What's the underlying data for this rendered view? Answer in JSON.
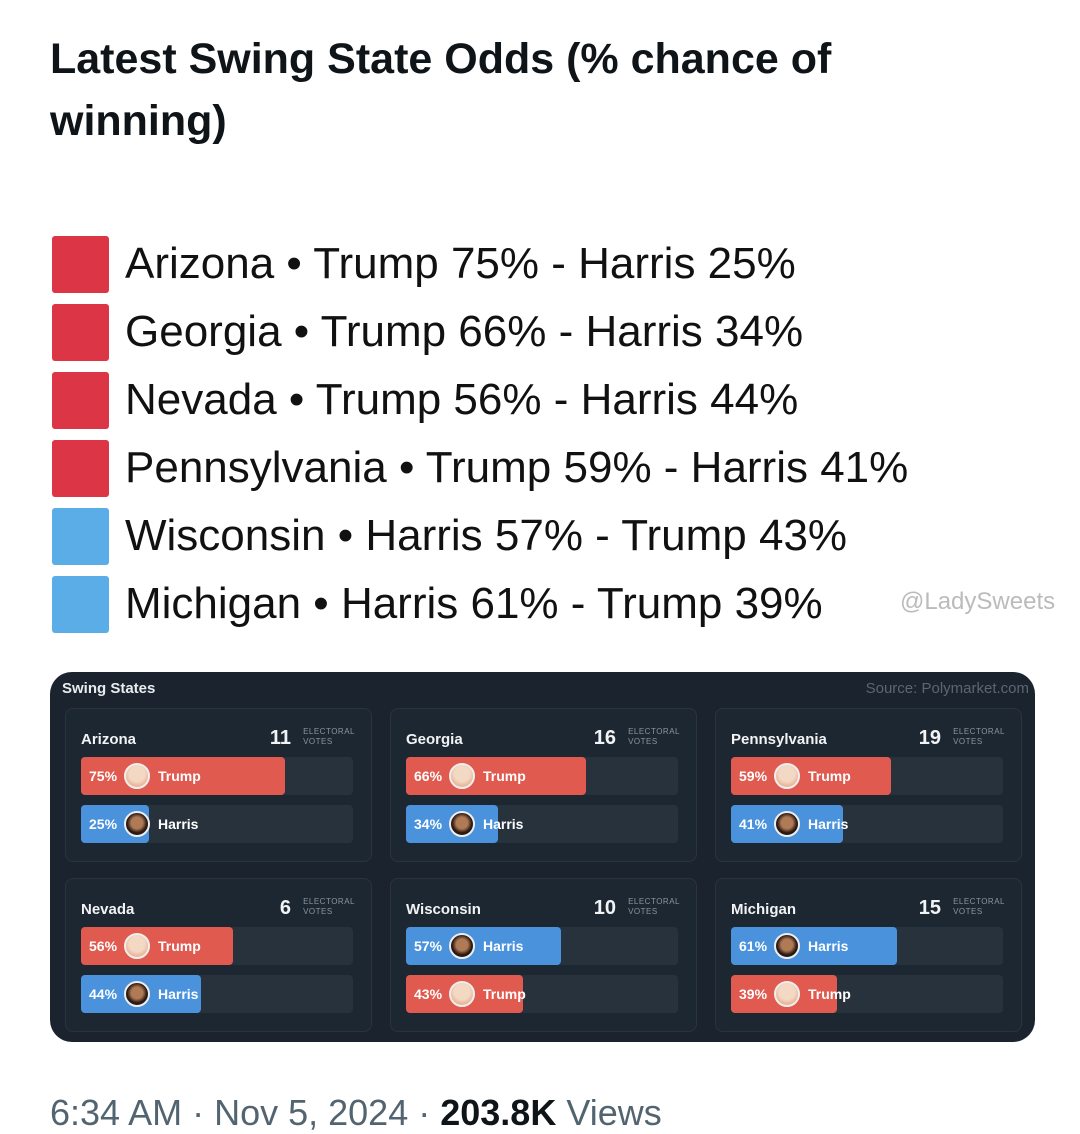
{
  "post": {
    "title": "Latest Swing State Odds (% chance of winning)",
    "lines": [
      {
        "text": "Arizona • Trump 75% - Harris 25%",
        "color": "#dc3545"
      },
      {
        "text": "Georgia • Trump 66% - Harris 34%",
        "color": "#dc3545"
      },
      {
        "text": "Nevada • Trump 56% - Harris 44%",
        "color": "#dc3545"
      },
      {
        "text": "Pennsylvania • Trump 59% - Harris 41%",
        "color": "#dc3545"
      },
      {
        "text": "Wisconsin • Harris 57% - Trump 43%",
        "color": "#5aade6"
      },
      {
        "text": "Michigan • Harris 61% - Trump 39%",
        "color": "#5aade6"
      }
    ],
    "watermark": "@LadySweets"
  },
  "image": {
    "title": "Swing States",
    "source": "Source: Polymarket.com",
    "ev_label_1": "ELECTORAL",
    "ev_label_2": "VOTES",
    "colors": {
      "trump": "#e05a50",
      "harris": "#4a93dc"
    },
    "states": [
      {
        "name": "Arizona",
        "ev": "11",
        "bars": [
          {
            "pct": 75,
            "label": "75%",
            "name": "Trump"
          },
          {
            "pct": 25,
            "label": "25%",
            "name": "Harris"
          }
        ]
      },
      {
        "name": "Georgia",
        "ev": "16",
        "bars": [
          {
            "pct": 66,
            "label": "66%",
            "name": "Trump"
          },
          {
            "pct": 34,
            "label": "34%",
            "name": "Harris"
          }
        ]
      },
      {
        "name": "Pennsylvania",
        "ev": "19",
        "bars": [
          {
            "pct": 59,
            "label": "59%",
            "name": "Trump"
          },
          {
            "pct": 41,
            "label": "41%",
            "name": "Harris"
          }
        ]
      },
      {
        "name": "Nevada",
        "ev": "6",
        "bars": [
          {
            "pct": 56,
            "label": "56%",
            "name": "Trump"
          },
          {
            "pct": 44,
            "label": "44%",
            "name": "Harris"
          }
        ]
      },
      {
        "name": "Wisconsin",
        "ev": "10",
        "bars": [
          {
            "pct": 57,
            "label": "57%",
            "name": "Harris"
          },
          {
            "pct": 43,
            "label": "43%",
            "name": "Trump"
          }
        ]
      },
      {
        "name": "Michigan",
        "ev": "15",
        "bars": [
          {
            "pct": 61,
            "label": "61%",
            "name": "Harris"
          },
          {
            "pct": 39,
            "label": "39%",
            "name": "Trump"
          }
        ]
      }
    ]
  },
  "footer": {
    "time": "6:34 AM",
    "date": "Nov 5, 2024",
    "views_count": "203.8K",
    "views_label": "Views"
  }
}
